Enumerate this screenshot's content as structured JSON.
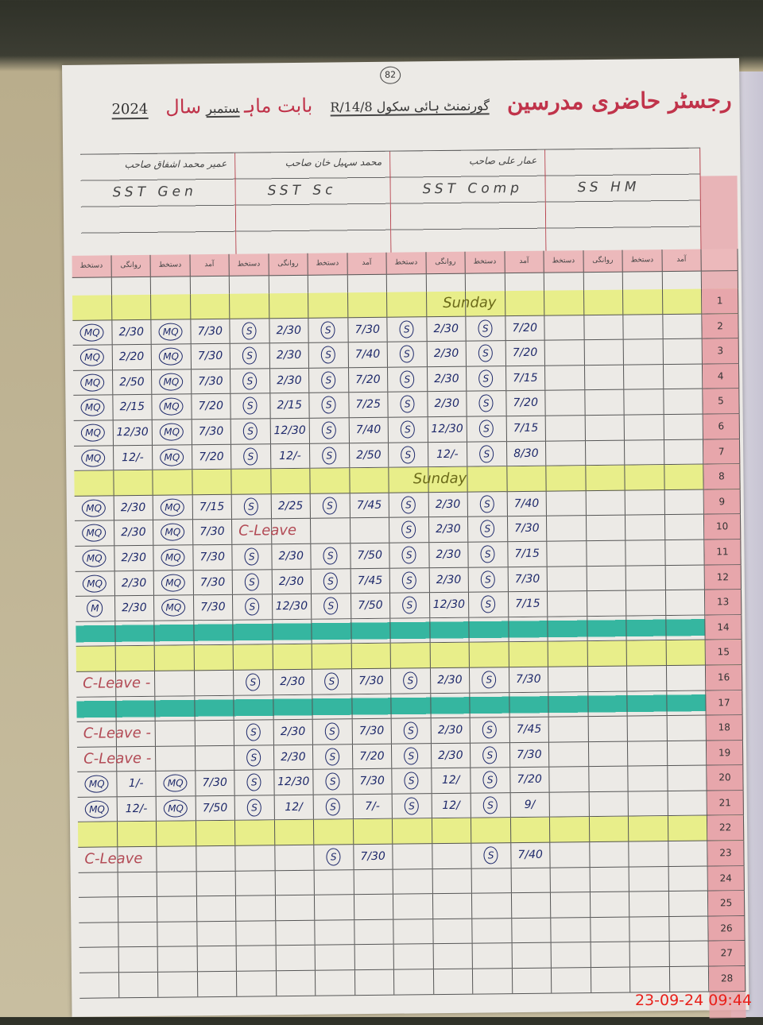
{
  "register": {
    "title": "رجسٹر حاضری مدرسین",
    "school": "گورنمنٹ ہائی سکول 14/8/R",
    "month_label": "بابت ماہ",
    "month_value": "ستمبر",
    "year_label": "سال",
    "year_value": "2024",
    "page_number": "82"
  },
  "teachers": [
    {
      "name": "عمیر محمد اشفاق صاحب",
      "post": "SST Gen"
    },
    {
      "name": "محمد سہیل خان صاحب",
      "post": "SST Sc"
    },
    {
      "name": "عمار علی صاحب",
      "post": "SST Comp"
    },
    {
      "name": "",
      "post": "SS HM"
    }
  ],
  "column_headers": [
    "دستخط",
    "روانگی",
    "دستخط",
    "آمد",
    "دستخط",
    "روانگی",
    "دستخط",
    "آمد",
    "دستخط",
    "روانگی",
    "دستخط",
    "آمد",
    "دستخط",
    "روانگی",
    "دستخط",
    "آمد"
  ],
  "signature_columns": [
    0,
    2,
    4,
    6,
    8,
    10,
    12,
    14
  ],
  "colors": {
    "title_red": "#c0334a",
    "ink_blue": "#1f2a6b",
    "sunday_yellow": "#e8ee8a",
    "holiday_teal": "#35b6a0",
    "date_column_pink": "#e7a6ab",
    "timestamp_red": "#e8201a"
  },
  "rows": [
    {
      "n": "1",
      "hl": "yellow",
      "note": {
        "text": "Sunday",
        "type": "sun",
        "group": 2
      },
      "cells": []
    },
    {
      "n": "2",
      "cells": [
        "MQ",
        "2/30",
        "MQ",
        "7/30",
        "S",
        "2/30",
        "S",
        "7/30",
        "S",
        "2/30",
        "S",
        "7/20"
      ]
    },
    {
      "n": "3",
      "cells": [
        "MQ",
        "2/20",
        "MQ",
        "7/30",
        "S",
        "2/30",
        "S",
        "7/40",
        "S",
        "2/30",
        "S",
        "7/20"
      ]
    },
    {
      "n": "4",
      "cells": [
        "MQ",
        "2/50",
        "MQ",
        "7/30",
        "S",
        "2/30",
        "S",
        "7/20",
        "S",
        "2/30",
        "S",
        "7/15"
      ]
    },
    {
      "n": "5",
      "cells": [
        "MQ",
        "2/15",
        "MQ",
        "7/20",
        "S",
        "2/15",
        "S",
        "7/25",
        "S",
        "2/30",
        "S",
        "7/20"
      ]
    },
    {
      "n": "6",
      "cells": [
        "MQ",
        "12/30",
        "MQ",
        "7/30",
        "S",
        "12/30",
        "S",
        "7/40",
        "S",
        "12/30",
        "S",
        "7/15"
      ]
    },
    {
      "n": "7",
      "cells": [
        "MQ",
        "12/-",
        "MQ",
        "7/20",
        "S",
        "12/-",
        "S",
        "2/50",
        "S",
        "12/-",
        "S",
        "8/30"
      ]
    },
    {
      "n": "8",
      "hl": "yellow",
      "note": {
        "text": "Sunday",
        "type": "sun",
        "group": 1.8
      },
      "cells": []
    },
    {
      "n": "9",
      "cells": [
        "MQ",
        "2/30",
        "MQ",
        "7/15",
        "S",
        "2/25",
        "S",
        "7/45",
        "S",
        "2/30",
        "S",
        "7/40"
      ]
    },
    {
      "n": "10",
      "note": {
        "text": "C-Leave",
        "type": "leave",
        "group": 1
      },
      "cells": [
        "MQ",
        "2/30",
        "MQ",
        "7/30",
        "",
        "",
        "",
        "",
        "S",
        "2/30",
        "S",
        "7/30"
      ]
    },
    {
      "n": "11",
      "cells": [
        "MQ",
        "2/30",
        "MQ",
        "7/30",
        "S",
        "2/30",
        "S",
        "7/50",
        "S",
        "2/30",
        "S",
        "7/15"
      ]
    },
    {
      "n": "12",
      "cells": [
        "MQ",
        "2/30",
        "MQ",
        "7/30",
        "S",
        "2/30",
        "S",
        "7/45",
        "S",
        "2/30",
        "S",
        "7/30"
      ]
    },
    {
      "n": "13",
      "cells": [
        "M",
        "2/30",
        "MQ",
        "7/30",
        "S",
        "12/30",
        "S",
        "7/50",
        "S",
        "12/30",
        "S",
        "7/15"
      ]
    },
    {
      "n": "14",
      "hl": "teal",
      "cells": []
    },
    {
      "n": "15",
      "hl": "yellow",
      "cells": []
    },
    {
      "n": "16",
      "note": {
        "text": "C-Leave -",
        "type": "leave",
        "group": 0
      },
      "cells": [
        "",
        "",
        "",
        "",
        "S",
        "2/30",
        "S",
        "7/30",
        "S",
        "2/30",
        "S",
        "7/30"
      ]
    },
    {
      "n": "17",
      "hl": "teal",
      "cells": []
    },
    {
      "n": "18",
      "note": {
        "text": "C-Leave -",
        "type": "leave",
        "group": 0
      },
      "cells": [
        "",
        "",
        "",
        "",
        "S",
        "2/30",
        "S",
        "7/30",
        "S",
        "2/30",
        "S",
        "7/45"
      ]
    },
    {
      "n": "19",
      "note": {
        "text": "C-Leave -",
        "type": "leave",
        "group": 0
      },
      "cells": [
        "",
        "",
        "",
        "",
        "S",
        "2/30",
        "S",
        "7/20",
        "S",
        "2/30",
        "S",
        "7/30"
      ]
    },
    {
      "n": "20",
      "cells": [
        "MQ",
        "1/-",
        "MQ",
        "7/30",
        "S",
        "12/30",
        "S",
        "7/30",
        "S",
        "12/",
        "S",
        "7/20"
      ]
    },
    {
      "n": "21",
      "cells": [
        "MQ",
        "12/-",
        "MQ",
        "7/50",
        "S",
        "12/",
        "S",
        "7/-",
        "S",
        "12/",
        "S",
        "9/"
      ]
    },
    {
      "n": "22",
      "hl": "yellow",
      "cells": []
    },
    {
      "n": "23",
      "note": {
        "text": "C-Leave",
        "type": "leave",
        "group": 0
      },
      "cells": [
        "",
        "",
        "",
        "",
        "",
        "",
        "S",
        "7/30",
        "",
        "",
        "S",
        "7/40"
      ]
    },
    {
      "n": "24",
      "cells": []
    },
    {
      "n": "25",
      "cells": []
    },
    {
      "n": "26",
      "cells": []
    },
    {
      "n": "27",
      "cells": []
    },
    {
      "n": "28",
      "cells": []
    }
  ],
  "timestamp": "23-09-24  09:44"
}
